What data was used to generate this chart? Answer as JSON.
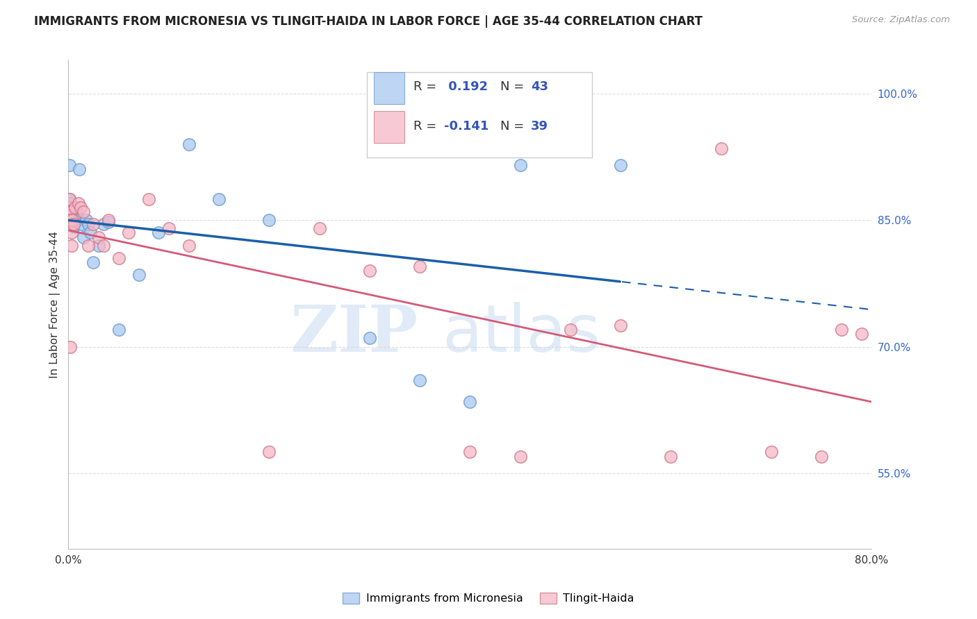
{
  "title": "IMMIGRANTS FROM MICRONESIA VS TLINGIT-HAIDA IN LABOR FORCE | AGE 35-44 CORRELATION CHART",
  "source": "Source: ZipAtlas.com",
  "ylabel": "In Labor Force | Age 35-44",
  "xlim": [
    0.0,
    80.0
  ],
  "ylim": [
    46.0,
    104.0
  ],
  "yticks": [
    55.0,
    70.0,
    85.0,
    100.0
  ],
  "ytick_labels": [
    "55.0%",
    "70.0%",
    "85.0%",
    "100.0%"
  ],
  "xtick_positions": [
    0.0,
    10.0,
    20.0,
    30.0,
    40.0,
    50.0,
    60.0,
    70.0,
    80.0
  ],
  "xtick_labels": [
    "0.0%",
    "",
    "",
    "",
    "",
    "",
    "",
    "",
    "80.0%"
  ],
  "color_blue": "#A8C8F0",
  "color_blue_edge": "#6699CC",
  "color_pink": "#F5B8C8",
  "color_pink_edge": "#CC7788",
  "color_blue_line": "#1A5FA8",
  "color_pink_line": "#D45A78",
  "color_rn": "#3355BB",
  "legend_label1": "Immigrants from Micronesia",
  "legend_label2": "Tlingit-Haida",
  "blue_x": [
    0.05,
    0.08,
    0.1,
    0.12,
    0.15,
    0.18,
    0.2,
    0.22,
    0.25,
    0.28,
    0.3,
    0.35,
    0.4,
    0.45,
    0.5,
    0.55,
    0.6,
    0.65,
    0.7,
    0.8,
    0.9,
    1.0,
    1.1,
    1.3,
    1.5,
    1.8,
    2.0,
    2.2,
    2.5,
    3.0,
    3.5,
    4.0,
    5.0,
    7.0,
    9.0,
    12.0,
    15.0,
    20.0,
    30.0,
    35.0,
    40.0,
    45.0,
    55.0
  ],
  "blue_y": [
    86.5,
    87.5,
    91.5,
    86.0,
    85.5,
    84.5,
    87.0,
    85.2,
    86.0,
    85.5,
    84.8,
    85.2,
    85.0,
    84.5,
    85.8,
    84.2,
    86.2,
    85.3,
    84.8,
    86.0,
    85.5,
    85.0,
    91.0,
    84.5,
    83.0,
    85.0,
    84.5,
    83.5,
    80.0,
    82.0,
    84.5,
    84.8,
    72.0,
    78.5,
    83.5,
    94.0,
    87.5,
    85.0,
    71.0,
    66.0,
    63.5,
    91.5,
    91.5
  ],
  "pink_x": [
    0.05,
    0.08,
    0.1,
    0.15,
    0.18,
    0.2,
    0.25,
    0.3,
    0.35,
    0.4,
    0.5,
    0.7,
    1.0,
    1.2,
    1.5,
    2.0,
    2.5,
    3.0,
    3.5,
    4.0,
    5.0,
    6.0,
    8.0,
    10.0,
    12.0,
    20.0,
    25.0,
    30.0,
    35.0,
    40.0,
    45.0,
    50.0,
    55.0,
    60.0,
    65.0,
    70.0,
    75.0,
    77.0,
    79.0
  ],
  "pink_y": [
    86.5,
    85.5,
    87.5,
    86.0,
    70.0,
    85.0,
    84.5,
    83.5,
    82.0,
    85.0,
    84.5,
    86.5,
    87.0,
    86.5,
    86.0,
    82.0,
    84.5,
    83.0,
    82.0,
    85.0,
    80.5,
    83.5,
    87.5,
    84.0,
    82.0,
    57.5,
    84.0,
    79.0,
    79.5,
    57.5,
    57.0,
    72.0,
    72.5,
    57.0,
    93.5,
    57.5,
    57.0,
    72.0,
    71.5
  ],
  "watermark_zip": "ZIP",
  "watermark_atlas": "atlas",
  "background_color": "#FFFFFF",
  "grid_color": "#DDDDDD"
}
